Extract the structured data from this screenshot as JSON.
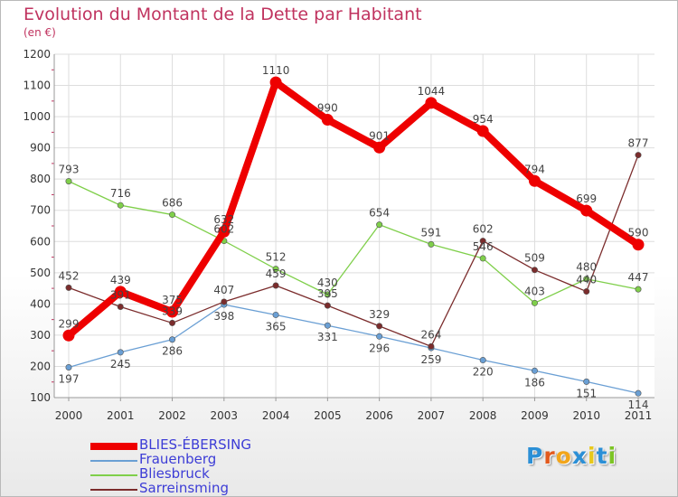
{
  "header": {
    "title": "Evolution du Montant de la Dette par Habitant",
    "subtitle": "(en €)"
  },
  "brand": {
    "letters": [
      "P",
      "r",
      "o",
      "x",
      "i",
      "t",
      "i"
    ],
    "colors": [
      "#2b8fd6",
      "#e2591c",
      "#f2a51a",
      "#2b8fd6",
      "#e8c81a",
      "#2b8fd6",
      "#7cc425"
    ]
  },
  "chart_data": {
    "type": "line",
    "x": [
      "2000",
      "2001",
      "2002",
      "2003",
      "2004",
      "2005",
      "2006",
      "2007",
      "2008",
      "2009",
      "2010",
      "2011"
    ],
    "ylim": [
      100,
      1200
    ],
    "yticks": [
      "100",
      "200",
      "300",
      "400",
      "500",
      "600",
      "700",
      "800",
      "900",
      "1000",
      "1100",
      "1200"
    ],
    "grid": true,
    "legend_position": "bottom-left",
    "series": [
      {
        "name": "BLIES-ÉBERSING",
        "color": "#ee0000",
        "values": [
          299,
          439,
          375,
          632,
          1110,
          990,
          901,
          1044,
          954,
          794,
          699,
          590
        ]
      },
      {
        "name": "Frauenberg",
        "color": "#6a9fd4",
        "values": [
          197,
          245,
          286,
          398,
          365,
          331,
          296,
          259,
          220,
          186,
          151,
          114
        ]
      },
      {
        "name": "Bliesbruck",
        "color": "#7fcf4a",
        "values": [
          793,
          716,
          686,
          602,
          512,
          430,
          654,
          591,
          546,
          403,
          480,
          447
        ]
      },
      {
        "name": "Sarreinsming",
        "color": "#7b2c2c",
        "values": [
          452,
          391,
          339,
          407,
          459,
          395,
          329,
          264,
          602,
          509,
          440,
          877
        ]
      }
    ]
  }
}
